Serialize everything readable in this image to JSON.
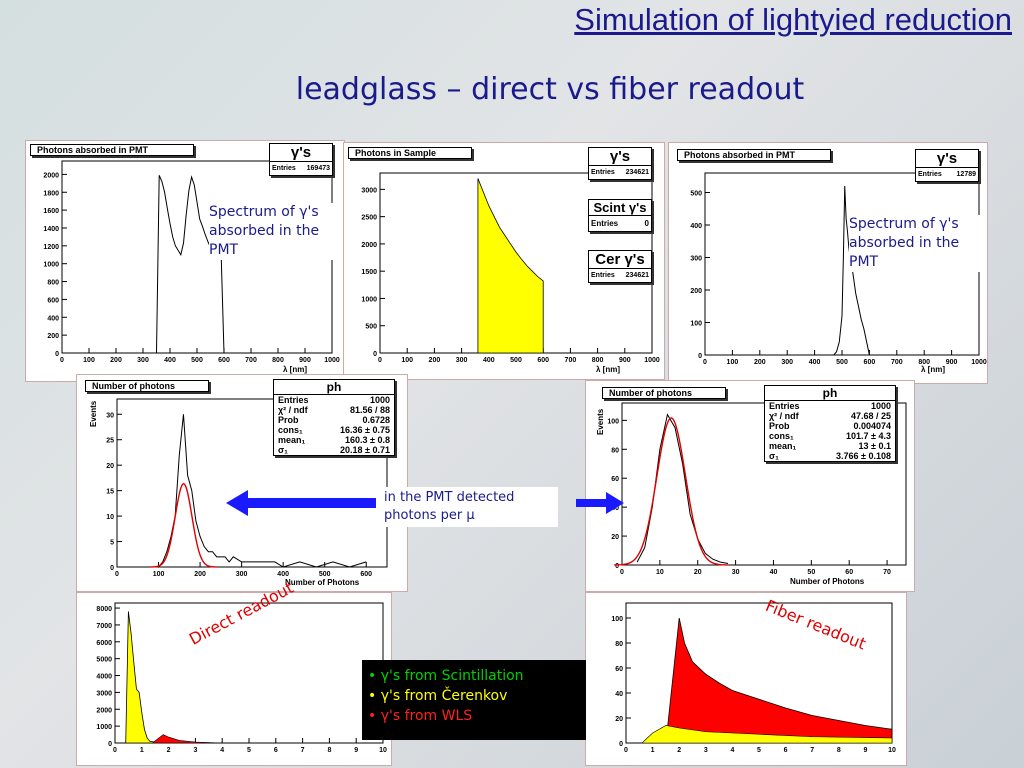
{
  "slide": {
    "title": "Simulation of lightyied reduction",
    "subtitle": "leadglass – direct vs fiber readout"
  },
  "colors": {
    "title": "#1a1a8c",
    "hist_fill": "#ffff00",
    "fit": "#e00000",
    "red_fill": "#ff0000"
  },
  "panels": {
    "pmt_direct": {
      "hist_title": "Photons absorbed in PMT",
      "stat_head": "γ's",
      "stat_label": "Entries",
      "stat_value": "169473",
      "note": "Spectrum of γ's absorbed in the PMT",
      "x_label": "λ  [nm]",
      "chart_data": {
        "type": "line",
        "x_ticks": [
          0,
          100,
          200,
          300,
          400,
          500,
          600,
          700,
          800,
          900,
          1000
        ],
        "y_ticks": [
          0,
          200,
          400,
          600,
          800,
          1000,
          1200,
          1400,
          1600,
          1800,
          2000
        ],
        "xlim": [
          0,
          1000
        ],
        "ylim": [
          0,
          2150
        ],
        "x": [
          350,
          360,
          370,
          380,
          390,
          400,
          410,
          420,
          430,
          440,
          450,
          460,
          470,
          480,
          490,
          500,
          510,
          520,
          530,
          540,
          550,
          560,
          570,
          580,
          590,
          600
        ],
        "y": [
          0,
          1990,
          1920,
          1800,
          1620,
          1450,
          1300,
          1200,
          1150,
          1100,
          1230,
          1550,
          1820,
          1970,
          1880,
          1690,
          1500,
          1420,
          1330,
          1250,
          1180,
          1140,
          1120,
          1090,
          1050,
          0
        ]
      }
    },
    "sample": {
      "hist_title": "Photons in Sample",
      "stat_head": "γ's",
      "stat_label": "Entries",
      "stat_value": "234621",
      "scint_head": "Scint γ's",
      "scint_label": "Entries",
      "scint_value": "0",
      "cer_head": "Cer γ's",
      "cer_label": "Entries",
      "cer_value": "234621",
      "x_label": "λ  [nm]",
      "chart_data": {
        "type": "area",
        "x_ticks": [
          0,
          100,
          200,
          300,
          400,
          500,
          600,
          700,
          800,
          900,
          1000
        ],
        "y_ticks": [
          0,
          500,
          1000,
          1500,
          2000,
          2500,
          3000
        ],
        "xlim": [
          0,
          1000
        ],
        "ylim": [
          0,
          3300
        ],
        "x": [
          360,
          380,
          400,
          420,
          440,
          460,
          480,
          500,
          520,
          540,
          560,
          580,
          600
        ],
        "y": [
          3200,
          2950,
          2700,
          2500,
          2300,
          2150,
          2000,
          1850,
          1720,
          1600,
          1500,
          1400,
          1320
        ]
      }
    },
    "pmt_fiber": {
      "hist_title": "Photons absorbed in PMT",
      "stat_head": "γ's",
      "stat_label": "Entries",
      "stat_value": "12789",
      "note": "Spectrum of γ's absorbed in the PMT",
      "x_label": "λ  [nm]",
      "chart_data": {
        "type": "line",
        "x_ticks": [
          0,
          100,
          200,
          300,
          400,
          500,
          600,
          700,
          800,
          900,
          1000
        ],
        "y_ticks": [
          0,
          100,
          200,
          300,
          400,
          500
        ],
        "xlim": [
          0,
          1000
        ],
        "ylim": [
          0,
          560
        ],
        "x": [
          470,
          480,
          490,
          500,
          505,
          510,
          515,
          520,
          525,
          530,
          540,
          550,
          560,
          570,
          580,
          590,
          600
        ],
        "y": [
          0,
          10,
          40,
          120,
          300,
          520,
          420,
          380,
          330,
          300,
          250,
          190,
          150,
          110,
          80,
          40,
          0
        ]
      }
    },
    "nphot_direct": {
      "hist_title": "Number of photons",
      "stat_head": "ph",
      "stats": [
        {
          "label": "Entries",
          "value": "1000"
        },
        {
          "label": "χ² / ndf",
          "value": "81.56 / 88"
        },
        {
          "label": "Prob",
          "value": "0.6728"
        },
        {
          "label": "cons₁",
          "value": "16.36 ± 0.75"
        },
        {
          "label": "mean₁",
          "value": "160.3 ± 0.8"
        },
        {
          "label": "σ₁",
          "value": "20.18 ± 0.71"
        }
      ],
      "y_label": "Events",
      "x_label": "Number of Photons",
      "chart_data": {
        "type": "line",
        "x_ticks": [
          0,
          100,
          200,
          300,
          400,
          500,
          600
        ],
        "y_ticks": [
          0,
          5,
          10,
          15,
          20,
          25,
          30
        ],
        "xlim": [
          0,
          650
        ],
        "ylim": [
          0,
          33
        ],
        "x": [
          100,
          110,
          120,
          130,
          140,
          150,
          160,
          170,
          180,
          190,
          200,
          210,
          220,
          230,
          240,
          250,
          260,
          270,
          280,
          300,
          320,
          340,
          360,
          380,
          400,
          440,
          480,
          520,
          560,
          600
        ],
        "y": [
          0,
          1,
          3,
          6,
          10,
          22,
          30,
          18,
          15,
          9,
          6,
          4,
          3,
          3,
          2,
          2,
          2,
          1,
          2,
          1,
          1,
          1,
          1,
          1,
          0,
          1,
          0,
          1,
          0,
          1
        ],
        "fit_mean": 160.3,
        "fit_sigma": 20.18,
        "fit_cons": 16.36
      }
    },
    "nphot_fiber": {
      "hist_title": "Number of photons",
      "stat_head": "ph",
      "stats": [
        {
          "label": "Entries",
          "value": "1000"
        },
        {
          "label": "χ² / ndf",
          "value": "47.68 / 25"
        },
        {
          "label": "Prob",
          "value": "0.004074"
        },
        {
          "label": "cons₁",
          "value": "101.7 ± 4.3"
        },
        {
          "label": "mean₁",
          "value": "13 ± 0.1"
        },
        {
          "label": "σ₁",
          "value": "3.766 ± 0.108"
        }
      ],
      "y_label": "Events",
      "x_label": "Number of Photons",
      "chart_data": {
        "type": "line",
        "x_ticks": [
          0,
          10,
          20,
          30,
          40,
          50,
          60,
          70
        ],
        "y_ticks": [
          0,
          20,
          40,
          60,
          80,
          100
        ],
        "xlim": [
          0,
          75
        ],
        "ylim": [
          0,
          112
        ],
        "x": [
          4,
          6,
          8,
          10,
          12,
          14,
          16,
          18,
          20,
          22,
          24,
          26,
          28
        ],
        "y": [
          2,
          12,
          40,
          80,
          104,
          95,
          70,
          35,
          18,
          8,
          4,
          2,
          1
        ],
        "fit_mean": 13,
        "fit_sigma": 3.766,
        "fit_cons": 101.7
      }
    },
    "time_direct": {
      "note": "Direct readout",
      "chart_data": {
        "type": "area",
        "x_ticks": [
          0,
          1,
          2,
          3,
          4,
          5,
          6,
          7,
          8,
          9,
          10
        ],
        "y_ticks": [
          0,
          1000,
          2000,
          3000,
          4000,
          5000,
          6000,
          7000,
          8000
        ],
        "xlim": [
          0,
          10
        ],
        "ylim": [
          0,
          8300
        ],
        "x": [
          0.4,
          0.5,
          0.6,
          0.7,
          0.8,
          0.9,
          1.0,
          1.1,
          1.2,
          1.3,
          1.5,
          1.7,
          2.0
        ],
        "y": [
          0,
          7800,
          6500,
          4800,
          3200,
          3000,
          1800,
          800,
          300,
          100,
          50,
          20,
          0
        ]
      }
    },
    "time_fiber": {
      "note": "Fiber readout",
      "chart_data": {
        "type": "area",
        "x_ticks": [
          0,
          1,
          2,
          3,
          4,
          5,
          6,
          7,
          8,
          9,
          10
        ],
        "y_ticks": [
          0,
          20,
          40,
          60,
          80,
          100
        ],
        "xlim": [
          0,
          10
        ],
        "ylim": [
          0,
          112
        ],
        "x": [
          1.5,
          1.8,
          2.0,
          2.2,
          2.5,
          3.0,
          3.5,
          4.0,
          5.0,
          6.0,
          7.0,
          8.0,
          9.0,
          10.0
        ],
        "y": [
          0,
          60,
          100,
          80,
          65,
          55,
          48,
          42,
          35,
          28,
          22,
          18,
          14,
          11
        ]
      }
    }
  },
  "middle_note": "in the PMT detected photons per μ",
  "legend": [
    {
      "text": "• γ's from Scintillation",
      "color": "#00d000"
    },
    {
      "text": "• γ's from Čerenkov",
      "color": "#ffff00"
    },
    {
      "text": "• γ's from WLS",
      "color": "#ff2020"
    }
  ]
}
